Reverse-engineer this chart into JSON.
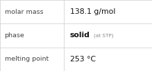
{
  "rows": [
    {
      "label": "molar mass",
      "value": "138.1 g/mol",
      "value_suffix": null,
      "value_bold": false
    },
    {
      "label": "phase",
      "value": "solid",
      "value_suffix": "(at STP)",
      "value_bold": true
    },
    {
      "label": "melting point",
      "value": "253 °C",
      "value_suffix": null,
      "value_bold": false
    }
  ],
  "bg_color": "#ffffff",
  "border_color": "#cccccc",
  "label_color": "#444444",
  "value_color": "#111111",
  "suffix_color": "#888888",
  "label_fontsize": 6.8,
  "value_fontsize": 7.8,
  "suffix_fontsize": 5.2,
  "col_split": 0.42,
  "fig_width": 2.19,
  "fig_height": 1.03,
  "dpi": 100
}
